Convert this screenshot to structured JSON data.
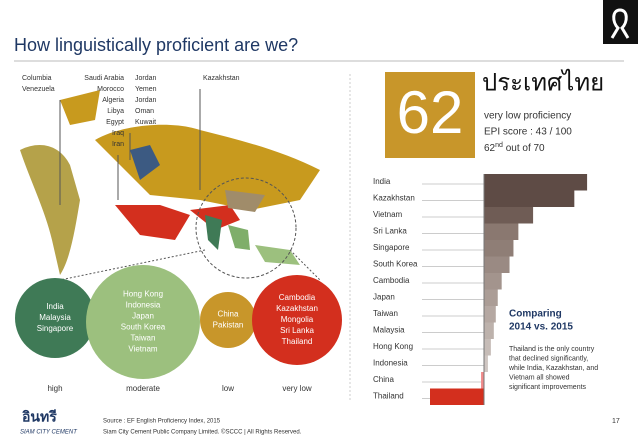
{
  "header": {
    "title": "How linguistically proficient are we?"
  },
  "map": {
    "labels": [
      [
        "Columbia",
        "Venezuela"
      ],
      [
        "Saudi Arabia",
        "Morocco",
        "Algeria",
        "Libya",
        "Egypt",
        "Iraq",
        "Iran"
      ],
      [
        "Jordan",
        "Yemen",
        "Jordan",
        "Oman",
        "Kuwait"
      ],
      [
        "Kazakhstan"
      ]
    ]
  },
  "bubbles": [
    {
      "level": "high",
      "countries": [
        "India",
        "Malaysia",
        "Singapore"
      ]
    },
    {
      "level": "moderate",
      "countries": [
        "Hong Kong",
        "Indonesia",
        "Japan",
        "South Korea",
        "Taiwan",
        "Vietnam"
      ]
    },
    {
      "level": "low",
      "countries": [
        "China",
        "Pakistan"
      ]
    },
    {
      "level": "very low",
      "countries": [
        "Cambodia",
        "Kazakhstan",
        "Mongolia",
        "Sri Lanka",
        "Thailand"
      ]
    }
  ],
  "proficiency": {
    "country": "ประเทศไทย",
    "rank": "62",
    "lines": [
      "very low proficiency",
      "EPI score : 43 / 100"
    ],
    "rank_line": {
      "number": "62",
      "suffix": "nd",
      "rest": " out of 70"
    }
  },
  "chart_data": {
    "type": "bar",
    "orientation": "horizontal",
    "categories": [
      "India",
      "Kazakhstan",
      "Vietnam",
      "Sri Lanka",
      "Singapore",
      "South Korea",
      "Cambodia",
      "Japan",
      "Taiwan",
      "Malaysia",
      "Hong Kong",
      "Indonesia",
      "China",
      "Thailand"
    ],
    "values": [
      105,
      92,
      50,
      35,
      30,
      26,
      18,
      14,
      12,
      10,
      7,
      4,
      -3,
      -55
    ],
    "colors": [
      "#5e4b45",
      "#5e4b45",
      "#6f5c55",
      "#8a7870",
      "#8f7e76",
      "#9a8a83",
      "#a3948d",
      "#ab9d96",
      "#b5a8a2",
      "#bdb2ac",
      "#c6bcb7",
      "#cfc6c2",
      "#f08a8a",
      "#d32f1e"
    ],
    "xlim": [
      -55,
      110
    ]
  },
  "comparing": {
    "title": [
      "Comparing",
      "2014 vs. 2015"
    ],
    "text": [
      "Thailand is the only country",
      "that declined significantly,",
      "while India, Kazakhstan, and",
      "Vietnam all showed",
      "significant improvements"
    ]
  },
  "footer": {
    "logo": "อินทรี",
    "company": "SIAM CITY CEMENT",
    "source": "Source : EF English Proficiency Index, 2015",
    "copyright": "Siam City Cement Public Company Limited. ©SCCC | All Rights Reserved.",
    "page": "17"
  }
}
